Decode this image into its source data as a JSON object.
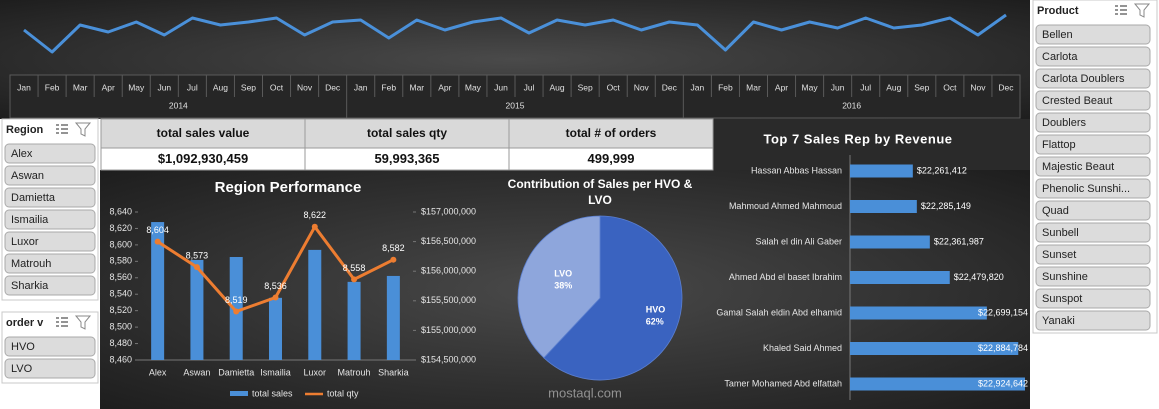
{
  "slicers": [
    {
      "title": "Region",
      "items": [
        "Alex",
        "Aswan",
        "Damietta",
        "Ismailia",
        "Luxor",
        "Matrouh",
        "Sharkia"
      ]
    },
    {
      "title": "order v",
      "items": [
        "HVO",
        "LVO"
      ]
    },
    {
      "title": "Product",
      "items": [
        "Bellen",
        "Carlota",
        "Carlota Doublers",
        "Crested Beaut",
        "Doublers",
        "Flattop",
        "Majestic Beaut",
        "Phenolic Sunshi...",
        "Quad",
        "Sunbell",
        "Sunset",
        "Sunshine",
        "Sunspot",
        "Yanaki"
      ]
    }
  ],
  "kpis": {
    "headers": [
      "total sales value",
      "total sales qty",
      "total # of orders"
    ],
    "values": [
      "$1,092,930,459",
      "59,993,365",
      "499,999"
    ]
  },
  "watermark": "mostaql.com",
  "chart_data": [
    {
      "type": "line",
      "categories": [
        "Jan",
        "Feb",
        "Mar",
        "Apr",
        "May",
        "Jun",
        "Jul",
        "Aug",
        "Sep",
        "Oct",
        "Nov",
        "Dec",
        "Jan",
        "Feb",
        "Mar",
        "Apr",
        "May",
        "Jun",
        "Jul",
        "Aug",
        "Sep",
        "Oct",
        "Nov",
        "Dec",
        "Jan",
        "Feb",
        "Mar",
        "Apr",
        "May",
        "Jun",
        "Jul",
        "Aug",
        "Sep",
        "Oct",
        "Nov",
        "Dec"
      ],
      "years": [
        "2014",
        "2015",
        "2016"
      ],
      "values": [
        30,
        8,
        35,
        28,
        38,
        25,
        42,
        35,
        38,
        42,
        25,
        38,
        40,
        22,
        40,
        30,
        38,
        42,
        27,
        40,
        35,
        40,
        30,
        38,
        35,
        10,
        38,
        30,
        38,
        32,
        42,
        32,
        35,
        42,
        25,
        45
      ],
      "color": "#4a90d9"
    },
    {
      "type": "combo",
      "title": "Region Performance",
      "categories": [
        "Alex",
        "Aswan",
        "Damietta",
        "Ismailia",
        "Luxor",
        "Matrouh",
        "Sharkia"
      ],
      "series": [
        {
          "name": "total sales",
          "color": "#4a8fd8",
          "axis": "y2",
          "values": [
            156830000,
            156190000,
            156240000,
            155550000,
            156360000,
            155820000,
            155920000
          ]
        },
        {
          "name": "total qty",
          "color": "#ed7d31",
          "values": [
            8604,
            8573,
            8519,
            8536,
            8622,
            8558,
            8582
          ],
          "value_labels": [
            "8,604",
            "8,573",
            "8,519",
            "8,536",
            "8,622",
            "8,558",
            "8,582"
          ]
        }
      ],
      "ylim": [
        8460,
        8640
      ],
      "yticks": [
        {
          "value": 8460,
          "label": "8,460"
        },
        {
          "value": 8480,
          "label": "8,480"
        },
        {
          "value": 8500,
          "label": "8,500"
        },
        {
          "value": 8520,
          "label": "8,520"
        },
        {
          "value": 8540,
          "label": "8,540"
        },
        {
          "value": 8560,
          "label": "8,560"
        },
        {
          "value": 8580,
          "label": "8,580"
        },
        {
          "value": 8600,
          "label": "8,600"
        },
        {
          "value": 8620,
          "label": "8,620"
        },
        {
          "value": 8640,
          "label": "8,640"
        }
      ],
      "y2lim": [
        154500000,
        157000000
      ],
      "y2ticks": [
        {
          "value": 154500000,
          "label": "$154,500,000"
        },
        {
          "value": 155000000,
          "label": "$155,000,000"
        },
        {
          "value": 155500000,
          "label": "$155,500,000"
        },
        {
          "value": 156000000,
          "label": "$156,000,000"
        },
        {
          "value": 156500000,
          "label": "$156,500,000"
        },
        {
          "value": 157000000,
          "label": "$157,000,000"
        }
      ]
    },
    {
      "type": "pie",
      "title": "Contribution of Sales per HVO & LVO",
      "categories": [
        "HVO",
        "LVO"
      ],
      "values": [
        62,
        38
      ],
      "value_labels": [
        "62%",
        "38%"
      ],
      "colors": [
        "#3a63c0",
        "#8ea6dc"
      ]
    },
    {
      "type": "hbar",
      "title": "Top 7 Sales Rep by Revenue",
      "categories": [
        "Hassan Abbas Hassan",
        "Mahmoud Ahmed Mahmoud",
        "Salah el din Ali Gaber",
        "Ahmed Abd el baset Ibrahim",
        "Gamal Salah eldin Abd elhamid",
        "Khaled Said Ahmed",
        "Tamer Mohamed Abd elfattah"
      ],
      "values": [
        22261412,
        22285149,
        22361987,
        22479820,
        22699154,
        22884784,
        22924642
      ],
      "value_labels": [
        "$22,261,412",
        "$22,285,149",
        "$22,361,987",
        "$22,479,820",
        "$22,699,154",
        "$22,884,784",
        "$22,924,642"
      ],
      "color": "#4a8fd8"
    }
  ]
}
